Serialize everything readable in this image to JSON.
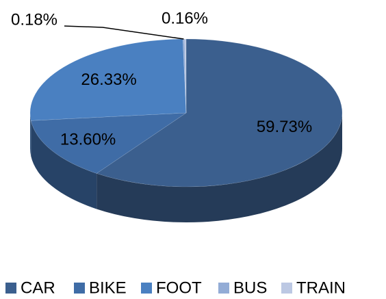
{
  "chart_data": {
    "type": "pie3d",
    "categories": [
      "CAR",
      "BIKE",
      "FOOT",
      "BUS",
      "TRAIN"
    ],
    "values": [
      59.73,
      13.6,
      26.33,
      0.18,
      0.16
    ],
    "value_labels": [
      "59.73%",
      "13.60%",
      "26.33%",
      "0.18%",
      "0.16%"
    ],
    "colors": [
      "#3b5f8e",
      "#3f6ca6",
      "#4a80c1",
      "#93acd6",
      "#bcc8e3"
    ],
    "legend": "bottom"
  }
}
